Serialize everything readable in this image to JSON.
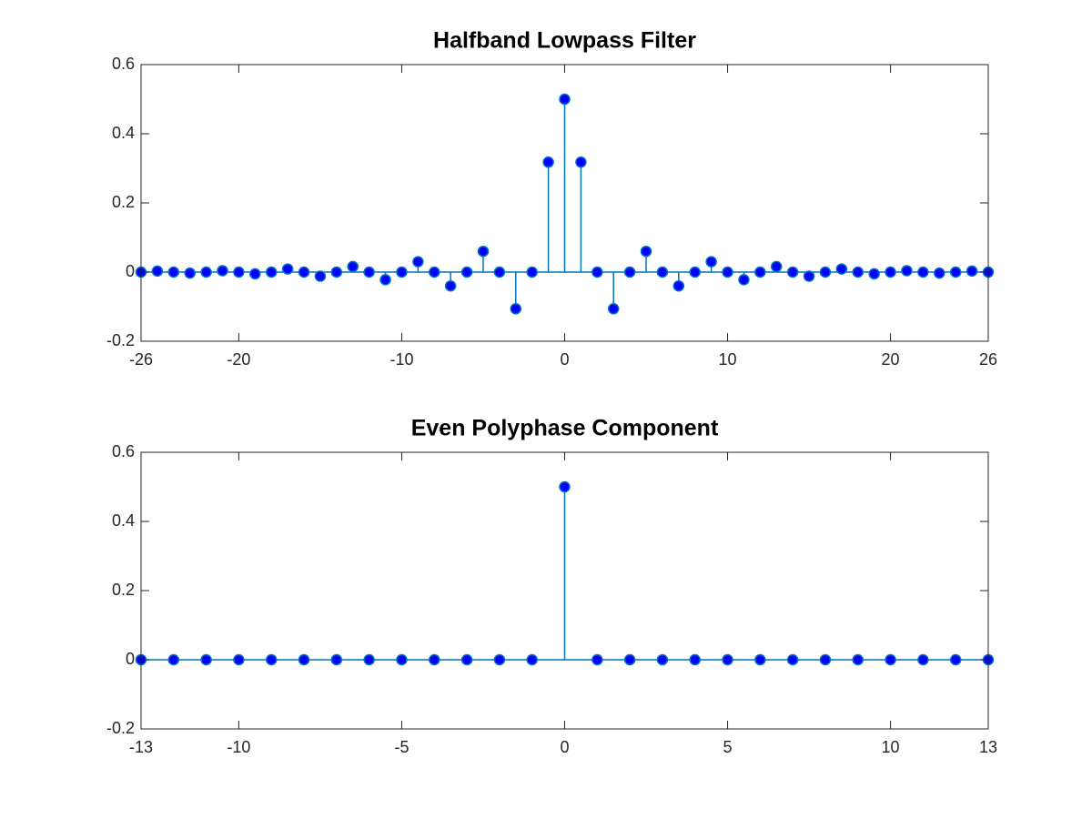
{
  "chart_data": [
    {
      "type": "stem",
      "title": "Halfband Lowpass Filter",
      "x": [
        -26,
        -25,
        -24,
        -23,
        -22,
        -21,
        -20,
        -19,
        -18,
        -17,
        -16,
        -15,
        -14,
        -13,
        -12,
        -11,
        -10,
        -9,
        -8,
        -7,
        -6,
        -5,
        -4,
        -3,
        -2,
        -1,
        0,
        1,
        2,
        3,
        4,
        5,
        6,
        7,
        8,
        9,
        10,
        11,
        12,
        13,
        14,
        15,
        16,
        17,
        18,
        19,
        20,
        21,
        22,
        23,
        24,
        25,
        26
      ],
      "values": [
        0,
        0.003,
        0,
        -0.003,
        0,
        0.004,
        0,
        -0.005,
        0,
        0.009,
        0,
        -0.012,
        0,
        0.016,
        0,
        -0.022,
        0,
        0.03,
        0,
        -0.04,
        0,
        0.06,
        0,
        -0.106,
        0,
        0.318,
        0.5,
        0.318,
        0,
        -0.106,
        0,
        0.06,
        0,
        -0.04,
        0,
        0.03,
        0,
        -0.022,
        0,
        0.016,
        0,
        -0.012,
        0,
        0.009,
        0,
        -0.005,
        0,
        0.004,
        0,
        -0.003,
        0,
        0.003,
        0
      ],
      "color": "#0072bd",
      "marker_color": "#0000ff",
      "xlim": [
        -26,
        26
      ],
      "ylim": [
        -0.2,
        0.6
      ],
      "xticks": [
        -26,
        -20,
        -10,
        0,
        10,
        20,
        26
      ],
      "yticks": [
        -0.2,
        0,
        0.2,
        0.4,
        0.6
      ]
    },
    {
      "type": "stem",
      "title": "Even Polyphase Component",
      "x": [
        -13,
        -12,
        -11,
        -10,
        -9,
        -8,
        -7,
        -6,
        -5,
        -4,
        -3,
        -2,
        -1,
        0,
        1,
        2,
        3,
        4,
        5,
        6,
        7,
        8,
        9,
        10,
        11,
        12,
        13
      ],
      "values": [
        0,
        0,
        0,
        0,
        0,
        0,
        0,
        0,
        0,
        0,
        0,
        0,
        0,
        0.5,
        0,
        0,
        0,
        0,
        0,
        0,
        0,
        0,
        0,
        0,
        0,
        0,
        0
      ],
      "color": "#0072bd",
      "marker_color": "#0000ff",
      "xlim": [
        -13,
        13
      ],
      "ylim": [
        -0.2,
        0.6
      ],
      "xticks": [
        -13,
        -10,
        -5,
        0,
        5,
        10,
        13
      ],
      "yticks": [
        -0.2,
        0,
        0.2,
        0.4,
        0.6
      ]
    }
  ]
}
